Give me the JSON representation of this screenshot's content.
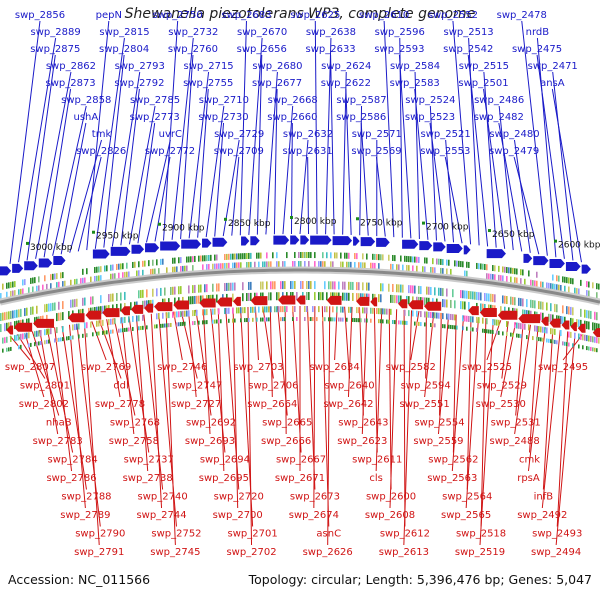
{
  "title": "Shewanella piezotolerans WP3, complete genome",
  "footer": {
    "accession": "Accession: NC_011566",
    "stats": "Topology: circular; Length: 5,396,476 bp; Genes: 5,047"
  },
  "colors": {
    "forward_strand": "#1a1ac8",
    "reverse_strand": "#d01414",
    "backbone": "#888888",
    "tick_marks": "#1a8a1a"
  },
  "scale_labels": [
    "3000 kbp",
    "2950 kbp",
    "2900 kbp",
    "2850 kbp",
    "2800 kbp",
    "2750 kbp",
    "2700 kbp",
    "2650 kbp",
    "2600 kbp"
  ],
  "top_labels": [
    "swp_2856",
    "swp_2889",
    "swp_2875",
    "swp_2862",
    "swp_2873",
    "swp_2858",
    "ushA",
    "tmk",
    "swp_2826",
    "pepN",
    "swp_2815",
    "swp_2804",
    "swp_2793",
    "swp_2792",
    "swp_2785",
    "swp_2773",
    "uvrC",
    "swp_2772",
    "swp_2750",
    "swp_2732",
    "swp_2760",
    "swp_2715",
    "swp_2755",
    "swp_2710",
    "swp_2730",
    "swp_2729",
    "swp_2709",
    "swp_2683",
    "swp_2670",
    "swp_2656",
    "swp_2680",
    "swp_2677",
    "swp_2668",
    "swp_2660",
    "swp_2632",
    "swp_2631",
    "swp_2625",
    "swp_2638",
    "swp_2633",
    "swp_2624",
    "swp_2622",
    "swp_2587",
    "swp_2586",
    "swp_2571",
    "swp_2569",
    "swp_2610",
    "swp_2596",
    "swp_2593",
    "swp_2584",
    "swp_2583",
    "swp_2524",
    "swp_2523",
    "swp_2521",
    "swp_2553",
    "swp_2552",
    "swp_2513",
    "swp_2542",
    "swp_2515",
    "swp_2501",
    "swp_2486",
    "swp_2482",
    "swp_2480",
    "swp_2479",
    "swp_2478",
    "nrdB",
    "swp_2475",
    "swp_2471",
    "ansA"
  ],
  "bottom_labels": [
    "swp_2807",
    "swp_2801",
    "swp_2802",
    "nhaB",
    "swp_2783",
    "swp_2784",
    "swp_2786",
    "swp_2788",
    "swp_2789",
    "swp_2790",
    "swp_2791",
    "swp_2769",
    "ddl",
    "swp_2778",
    "swp_2768",
    "swp_2758",
    "swp_2737",
    "swp_2738",
    "swp_2740",
    "swp_2744",
    "swp_2752",
    "swp_2745",
    "swp_2746",
    "swp_2747",
    "swp_2727",
    "swp_2692",
    "swp_2693",
    "swp_2694",
    "swp_2695",
    "swp_2720",
    "swp_2700",
    "swp_2701",
    "swp_2702",
    "swp_2703",
    "swp_2706",
    "swp_2664",
    "swp_2665",
    "swp_2666",
    "swp_2667",
    "swp_2671",
    "swp_2673",
    "swp_2674",
    "asnC",
    "swp_2626",
    "swp_2634",
    "swp_2640",
    "swp_2642",
    "swp_2643",
    "swp_2623",
    "swp_2611",
    "cls",
    "swp_2600",
    "swp_2608",
    "swp_2612",
    "swp_2613",
    "swp_2582",
    "swp_2594",
    "swp_2551",
    "swp_2554",
    "swp_2559",
    "swp_2562",
    "swp_2563",
    "swp_2564",
    "swp_2565",
    "swp_2518",
    "swp_2519",
    "swp_2525",
    "swp_2529",
    "swp_2530",
    "swp_2531",
    "swp_2488",
    "cmk",
    "rpsA",
    "infB",
    "swp_2492",
    "swp_2493",
    "swp_2494",
    "swp_2495"
  ]
}
